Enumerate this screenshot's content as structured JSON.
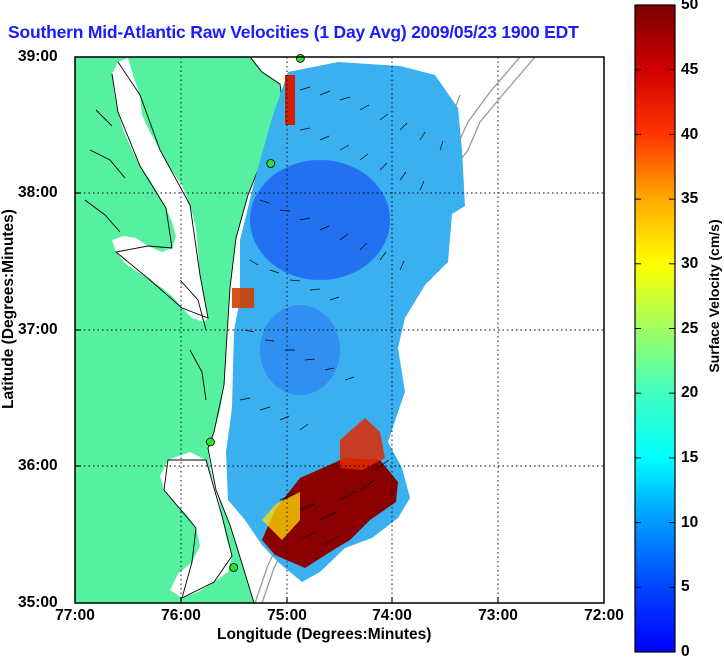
{
  "title": "Southern Mid-Atlantic Raw Velocities (1 Day Avg) 2009/05/23 1900 EDT",
  "chart_data": {
    "type": "map",
    "xlabel": "Longitude (Degrees:Minutes)",
    "ylabel": "Latitude (Degrees:Minutes)",
    "x_ticks": [
      "77:00",
      "76:00",
      "75:00",
      "74:00",
      "73:00",
      "72:00"
    ],
    "y_ticks": [
      "39:00",
      "38:00",
      "37:00",
      "36:00",
      "35:00"
    ],
    "xlim": [
      -77,
      -72
    ],
    "ylim": [
      35,
      39
    ],
    "grid": true,
    "colorbar": {
      "label": "Surface Velocity (cm/s)",
      "range": [
        0,
        50
      ],
      "ticks": [
        "0",
        "5",
        "10",
        "15",
        "20",
        "25",
        "30",
        "35",
        "40",
        "45",
        "50"
      ],
      "colormap": "jet"
    },
    "colors": {
      "land": "#55f0a0",
      "title": "#1b1bff"
    },
    "stations": [
      {
        "lon": -74.87,
        "lat": 38.99
      },
      {
        "lon": -75.15,
        "lat": 38.22
      },
      {
        "lon": -75.72,
        "lat": 36.18
      },
      {
        "lon": -75.5,
        "lat": 35.26
      }
    ]
  }
}
